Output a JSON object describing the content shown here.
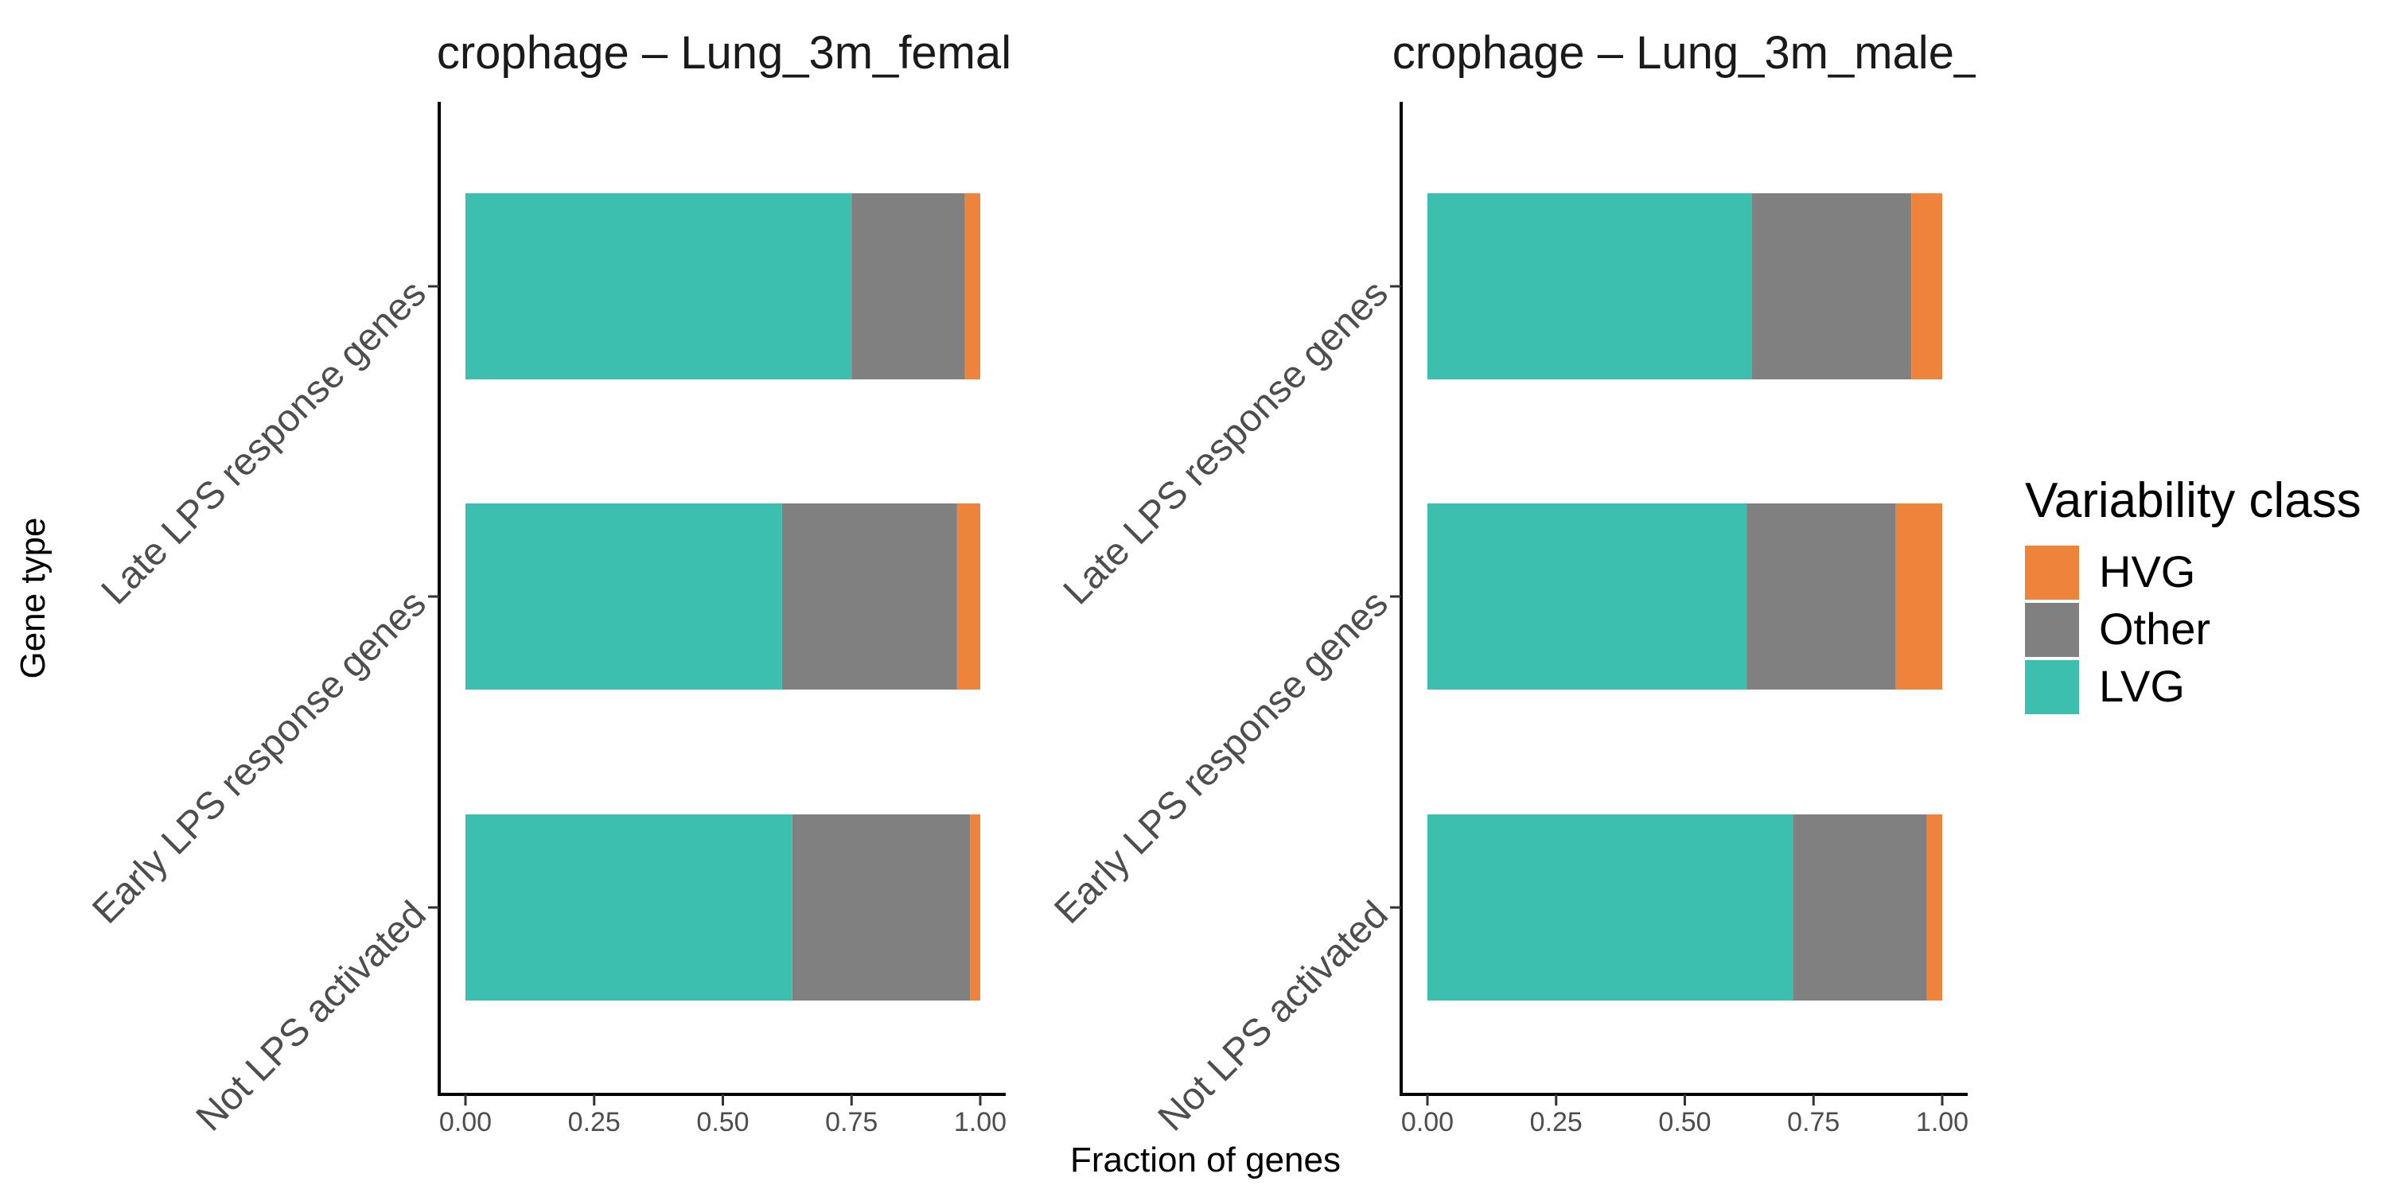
{
  "chart_data": [
    {
      "type": "bar",
      "orientation": "horizontal",
      "stacked": true,
      "title": "crophage – Lung_3m_femal",
      "categories": [
        "Late LPS response genes",
        "Early LPS response genes",
        "Not LPS activated"
      ],
      "series": [
        {
          "name": "LVG",
          "values": [
            0.75,
            0.615,
            0.635
          ]
        },
        {
          "name": "Other",
          "values": [
            0.22,
            0.34,
            0.345
          ]
        },
        {
          "name": "HVG",
          "values": [
            0.03,
            0.045,
            0.02
          ]
        }
      ],
      "xlim": [
        0,
        1
      ],
      "xticks": [
        "0.00",
        "0.25",
        "0.50",
        "0.75",
        "1.00"
      ]
    },
    {
      "type": "bar",
      "orientation": "horizontal",
      "stacked": true,
      "title": "crophage – Lung_3m_male_",
      "categories": [
        "Late LPS response genes",
        "Early LPS response genes",
        "Not LPS activated"
      ],
      "series": [
        {
          "name": "LVG",
          "values": [
            0.63,
            0.62,
            0.71
          ]
        },
        {
          "name": "Other",
          "values": [
            0.31,
            0.29,
            0.26
          ]
        },
        {
          "name": "HVG",
          "values": [
            0.06,
            0.09,
            0.03
          ]
        }
      ],
      "xlim": [
        0,
        1
      ],
      "xticks": [
        "0.00",
        "0.25",
        "0.50",
        "0.75",
        "1.00"
      ]
    }
  ],
  "axes": {
    "xlabel": "Fraction of genes",
    "ylabel": "Gene type"
  },
  "legend": {
    "title": "Variability class",
    "position": "right",
    "items": [
      {
        "label": "HVG",
        "color": "#EE833B"
      },
      {
        "label": "Other",
        "color": "#808080"
      },
      {
        "label": "LVG",
        "color": "#3DBFAF"
      }
    ]
  },
  "colors": {
    "LVG": "#3DBFAF",
    "Other": "#808080",
    "HVG": "#EE833B"
  }
}
